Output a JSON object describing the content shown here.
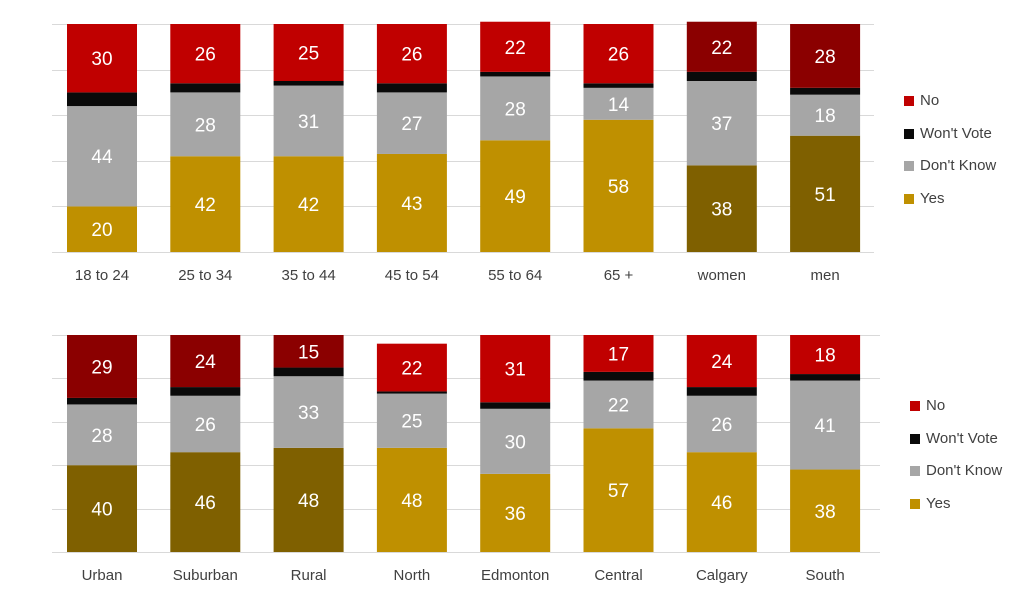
{
  "colors": {
    "no": "#c00000",
    "no_dark": "#8b0000",
    "wont_vote": "#0a0a0a",
    "dont_know": "#a6a6a6",
    "yes": "#bf9000",
    "yes_dark": "#7f6000",
    "grid": "#d9d9d9",
    "axis_label": "#404040"
  },
  "legend": [
    {
      "key": "no",
      "label": "No"
    },
    {
      "key": "wont_vote",
      "label": "Won't Vote"
    },
    {
      "key": "dont_know",
      "label": "Don't Know"
    },
    {
      "key": "yes",
      "label": "Yes"
    }
  ],
  "chart_data": [
    {
      "type": "bar",
      "stacked": true,
      "ylim": [
        0,
        100
      ],
      "grid": true,
      "legend_position": "right",
      "categories": [
        "18 to 24",
        "25 to 34",
        "35 to 44",
        "45 to 54",
        "55 to 64",
        "65 +",
        "women",
        "men"
      ],
      "highlight": [
        false,
        false,
        false,
        false,
        false,
        false,
        true,
        true
      ],
      "series": [
        {
          "key": "yes",
          "name": "Yes",
          "values": [
            20,
            42,
            42,
            43,
            49,
            58,
            38,
            51
          ]
        },
        {
          "key": "dont_know",
          "name": "Don't Know",
          "values": [
            44,
            28,
            31,
            27,
            28,
            14,
            37,
            18
          ]
        },
        {
          "key": "wont_vote",
          "name": "Won't Vote",
          "values": [
            6,
            4,
            2,
            4,
            2,
            2,
            4,
            3
          ]
        },
        {
          "key": "no",
          "name": "No",
          "values": [
            30,
            26,
            25,
            26,
            22,
            26,
            22,
            28
          ]
        }
      ]
    },
    {
      "type": "bar",
      "stacked": true,
      "ylim": [
        0,
        100
      ],
      "grid": true,
      "legend_position": "right",
      "categories": [
        "Urban",
        "Suburban",
        "Rural",
        "North",
        "Edmonton",
        "Central",
        "Calgary",
        "South"
      ],
      "highlight": [
        true,
        true,
        true,
        false,
        false,
        false,
        false,
        false
      ],
      "series": [
        {
          "key": "yes",
          "name": "Yes",
          "values": [
            40,
            46,
            48,
            48,
            36,
            57,
            46,
            38
          ]
        },
        {
          "key": "dont_know",
          "name": "Don't Know",
          "values": [
            28,
            26,
            33,
            25,
            30,
            22,
            26,
            41
          ]
        },
        {
          "key": "wont_vote",
          "name": "Won't Vote",
          "values": [
            3,
            4,
            4,
            1,
            3,
            4,
            4,
            3
          ]
        },
        {
          "key": "no",
          "name": "No",
          "values": [
            29,
            24,
            15,
            22,
            31,
            17,
            24,
            18
          ]
        }
      ]
    }
  ]
}
